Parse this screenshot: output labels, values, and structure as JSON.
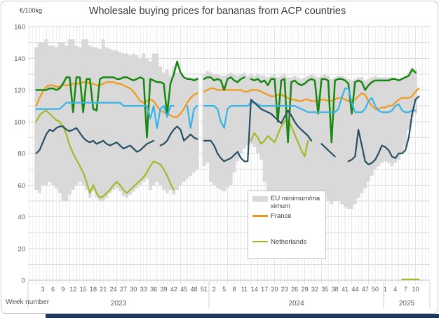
{
  "header": {
    "unit_label": "€/100kg",
    "title": "Wholesale buying prices for bananas from ACP countries"
  },
  "legend": {
    "items": [
      {
        "label": "EU minimum/maximum",
        "color": "#d9d9d9",
        "swatch": "band"
      },
      {
        "label": "France",
        "color": "#f09a19",
        "swatch": "line"
      },
      {
        "label": "Netherlands",
        "color": "#a6b727",
        "swatch": "line"
      }
    ]
  },
  "chart_data": {
    "type": "line",
    "title": "Wholesale buying prices for bananas from ACP countries",
    "ylabel": "€/100kg",
    "grid": true,
    "legend_position": "center-overlay",
    "y_axis": {
      "min": 0,
      "max": 160,
      "tick_step": 20,
      "gridline_step": 10
    },
    "x_axis": {
      "label": "Week number",
      "years": [
        {
          "year": "2023",
          "weeks": 52,
          "tick_labels": [
            3,
            6,
            9,
            12,
            15,
            18,
            21,
            24,
            27,
            30,
            33,
            36,
            39,
            42,
            45,
            48,
            51
          ]
        },
        {
          "year": "2024",
          "weeks": 52,
          "tick_labels": [
            2,
            5,
            8,
            11,
            14,
            17,
            20,
            23,
            26,
            29,
            32,
            35,
            38,
            41,
            44,
            47,
            50
          ]
        },
        {
          "year": "2025",
          "weeks": 11,
          "tick_labels": [
            1,
            4,
            7,
            10
          ]
        }
      ]
    },
    "band": {
      "name": "EU minimum/maximum",
      "color": "#d9d9d9",
      "max": [
        147,
        150,
        150,
        152,
        148,
        148,
        147,
        150,
        150,
        148,
        152,
        152,
        148,
        147,
        152,
        152,
        148,
        147,
        147,
        146,
        152,
        147,
        146,
        145,
        145,
        144,
        143,
        143,
        142,
        143,
        142,
        140,
        143,
        140,
        138,
        143,
        143,
        135,
        131,
        133,
        129,
        135,
        131,
        130,
        128,
        128,
        127,
        128,
        128,
        null,
        130,
        132,
        131,
        130,
        130,
        129,
        129,
        130,
        131,
        130,
        129,
        130,
        131,
        129,
        130,
        129,
        130,
        129,
        129,
        128,
        129,
        130,
        128,
        129,
        130,
        128,
        128,
        129,
        128,
        127,
        128,
        129,
        130,
        129,
        128,
        129,
        130,
        129,
        127,
        128,
        129,
        129,
        128,
        127,
        126,
        127,
        128,
        128,
        126,
        127,
        128,
        129,
        128,
        128,
        128,
        128,
        128,
        127,
        127,
        128,
        129,
        131,
        134,
        133,
        null
      ],
      "min": [
        57,
        55,
        60,
        60,
        62,
        60,
        58,
        55,
        50,
        50,
        54,
        57,
        60,
        62,
        60,
        57,
        52,
        56,
        52,
        50,
        50,
        52,
        55,
        57,
        58,
        56,
        53,
        52,
        54,
        56,
        58,
        60,
        62,
        64,
        57,
        60,
        62,
        60,
        57,
        55,
        57,
        54,
        57,
        60,
        62,
        64,
        66,
        68,
        70,
        null,
        72,
        74,
        62,
        60,
        58,
        57,
        56,
        58,
        60,
        68,
        75,
        80,
        83,
        85,
        86,
        84,
        80,
        76,
        62,
        55,
        52,
        50,
        48,
        46,
        45,
        44,
        45,
        46,
        48,
        50,
        52,
        54,
        52,
        50,
        52,
        54,
        52,
        50,
        48,
        50,
        50,
        48,
        46,
        45,
        45,
        48,
        52,
        55,
        58,
        62,
        66,
        70,
        72,
        74,
        75,
        74,
        72,
        74,
        76,
        80,
        85,
        95,
        103,
        105,
        null
      ]
    },
    "series": [
      {
        "name": "France",
        "color": "#f09a19",
        "width": 2.2,
        "values": [
          110,
          115,
          119,
          122,
          123,
          123,
          122,
          122,
          123,
          123,
          123,
          124,
          124,
          124,
          125,
          125,
          124,
          124,
          123,
          123,
          124,
          125,
          125,
          125,
          124,
          124,
          123,
          122,
          121,
          119,
          116,
          113,
          112,
          113,
          114,
          113,
          110,
          107,
          106,
          105,
          104,
          103,
          103,
          105,
          108,
          112,
          115,
          117,
          118,
          null,
          119,
          120,
          121,
          121,
          120,
          120,
          120,
          120,
          120,
          120,
          120,
          120,
          119,
          119,
          120,
          120,
          120,
          119,
          118,
          117,
          116,
          116,
          117,
          117,
          116,
          115,
          114,
          114,
          113,
          113,
          114,
          114,
          113,
          113,
          113,
          114,
          114,
          113,
          113,
          114,
          115,
          115,
          114,
          113,
          113,
          114,
          116,
          118,
          117,
          113,
          110,
          108,
          108,
          109,
          109,
          110,
          110,
          112,
          114,
          115,
          115,
          115,
          116,
          119,
          121
        ]
      },
      {
        "name": "Netherlands",
        "color": "#a6b727",
        "width": 2.2,
        "values": [
          100,
          104,
          106,
          107,
          105,
          103,
          101,
          100,
          97,
          92,
          85,
          80,
          76,
          72,
          68,
          62,
          55,
          60,
          55,
          52,
          53,
          55,
          57,
          60,
          62,
          60,
          57,
          55,
          57,
          59,
          61,
          63,
          65,
          68,
          72,
          75,
          74,
          73,
          70,
          66,
          61,
          57,
          null,
          null,
          null,
          null,
          null,
          null,
          null,
          null,
          null,
          null,
          null,
          null,
          null,
          null,
          null,
          null,
          null,
          null,
          null,
          null,
          null,
          null,
          88,
          93,
          90,
          86,
          88,
          91,
          89,
          87,
          92,
          97,
          100,
          101,
          97,
          92,
          87,
          82,
          78,
          88,
          null,
          null,
          null,
          null,
          null,
          null,
          null,
          null,
          null,
          null,
          null,
          null,
          null,
          null,
          null,
          null,
          null,
          null,
          null,
          null,
          null,
          null,
          null,
          null,
          null,
          null,
          null,
          0.5,
          0.5,
          0.5,
          0.5,
          0.5,
          0.5
        ]
      },
      {
        "name": "dark green (unlabelled)",
        "color": "#17870f",
        "width": 2.5,
        "values": [
          120,
          120,
          120,
          120,
          121,
          121,
          120,
          121,
          124,
          128,
          128,
          106,
          128,
          128,
          106,
          127,
          127,
          108,
          107,
          127,
          128,
          128,
          128,
          128,
          127,
          127,
          128,
          128,
          127,
          126,
          127,
          128,
          127,
          90,
          127,
          126,
          125,
          125,
          124,
          105,
          124,
          130,
          138,
          131,
          128,
          127,
          127,
          126,
          127,
          null,
          127,
          128,
          128,
          126,
          127,
          126,
          120,
          127,
          128,
          126,
          125,
          127,
          128,
          null,
          127,
          126,
          127,
          125,
          126,
          123,
          127,
          127,
          100,
          126,
          127,
          87,
          125,
          126,
          124,
          123,
          124,
          126,
          127,
          126,
          105,
          127,
          127,
          126,
          87,
          126,
          127,
          127,
          126,
          124,
          105,
          125,
          126,
          125,
          120,
          123,
          125,
          126,
          126,
          126,
          126,
          126,
          127,
          127,
          126,
          127,
          128,
          129,
          133,
          131,
          null
        ]
      },
      {
        "name": "light blue (unlabelled)",
        "color": "#38b3e8",
        "width": 2.2,
        "values": [
          108,
          108,
          108,
          108,
          108,
          108,
          108,
          108,
          110,
          112,
          112,
          112,
          112,
          112,
          112,
          112,
          112,
          112,
          112,
          112,
          112,
          112,
          112,
          112,
          112,
          112,
          110,
          110,
          110,
          110,
          110,
          110,
          110,
          110,
          102,
          110,
          96,
          108,
          110,
          103,
          110,
          110,
          null,
          110,
          null,
          110,
          96,
          108,
          110,
          null,
          110,
          110,
          110,
          110,
          108,
          100,
          96,
          108,
          110,
          110,
          110,
          110,
          110,
          110,
          112,
          112,
          111,
          110,
          110,
          110,
          110,
          110,
          110,
          110,
          110,
          110,
          110,
          110,
          109,
          108,
          107,
          106,
          106,
          106,
          106,
          106,
          106,
          106,
          106,
          106,
          108,
          115,
          121,
          121,
          112,
          106,
          106,
          106,
          108,
          113,
          115,
          110,
          107,
          106,
          106,
          106,
          107,
          110,
          111,
          107,
          106,
          106,
          107,
          107,
          null
        ]
      },
      {
        "name": "dark blue (unlabelled)",
        "color": "#284e63",
        "width": 2.2,
        "values": [
          80,
          82,
          87,
          92,
          95,
          94,
          96,
          97,
          97,
          95,
          94,
          95,
          96,
          93,
          90,
          88,
          87,
          88,
          86,
          87,
          88,
          86,
          85,
          86,
          87,
          85,
          83,
          84,
          85,
          83,
          81,
          82,
          84,
          86,
          87,
          88,
          null,
          85,
          86,
          88,
          92,
          95,
          97,
          95,
          88,
          90,
          92,
          90,
          89,
          null,
          88,
          88,
          88,
          85,
          80,
          77,
          75,
          76,
          77,
          79,
          81,
          77,
          75,
          75,
          114,
          112,
          110,
          108,
          107,
          106,
          105,
          103,
          101,
          99,
          103,
          107,
          104,
          100,
          97,
          95,
          93,
          91,
          88,
          null,
          null,
          86,
          84,
          82,
          80,
          78,
          null,
          null,
          null,
          75,
          76,
          78,
          95,
          85,
          75,
          73,
          74,
          76,
          80,
          85,
          84,
          82,
          78,
          77,
          80,
          80,
          82,
          90,
          105,
          114,
          116
        ]
      }
    ]
  },
  "colors": {
    "grid": "#e4e4e4",
    "hgrid": "#d9d9d9",
    "axis_text": "#595959",
    "axis_line": "#c0c0c0",
    "bottom_bar": "#1d3a5e"
  }
}
